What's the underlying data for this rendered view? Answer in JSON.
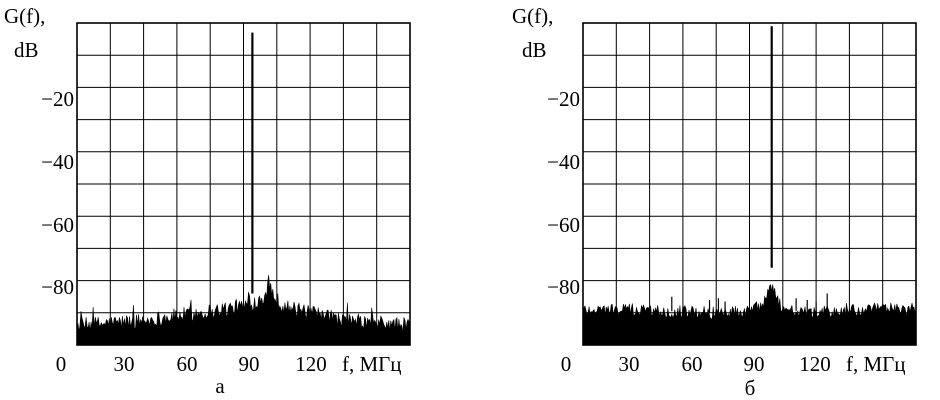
{
  "chart_data": [
    {
      "type": "line",
      "caption": "а",
      "ylabel_line1": "G(f),",
      "ylabel_line2": "dB",
      "xlabel": "f, МГц",
      "x_ticks": [
        "0",
        "30",
        "60",
        "90",
        "120"
      ],
      "y_ticks": [
        "−20",
        "−40",
        "−60",
        "−80"
      ],
      "xlim": [
        0,
        150
      ],
      "ylim": [
        -100,
        0
      ],
      "grid": true,
      "carrier": {
        "x": 79,
        "top": -3,
        "bottom": -84
      },
      "noise_profile": [
        [
          0,
          -94
        ],
        [
          10,
          -93.5
        ],
        [
          20,
          -93
        ],
        [
          30,
          -92.5
        ],
        [
          40,
          -91.5
        ],
        [
          50,
          -90.5
        ],
        [
          60,
          -89.5
        ],
        [
          70,
          -88.5
        ],
        [
          78,
          -87.5
        ],
        [
          82,
          -86
        ],
        [
          85,
          -84
        ],
        [
          87,
          -82
        ],
        [
          89,
          -85
        ],
        [
          92,
          -87.5
        ],
        [
          100,
          -89.5
        ],
        [
          110,
          -91
        ],
        [
          120,
          -92.5
        ],
        [
          130,
          -93
        ],
        [
          140,
          -93.5
        ],
        [
          150,
          -94
        ]
      ],
      "noise_jitter": 2.5
    },
    {
      "type": "line",
      "caption": "б",
      "ylabel_line1": "G(f),",
      "ylabel_line2": "dB",
      "xlabel": "f, МГц",
      "x_ticks": [
        "0",
        "30",
        "60",
        "90",
        "120"
      ],
      "y_ticks": [
        "−20",
        "−40",
        "−60",
        "−80"
      ],
      "xlim": [
        0,
        150
      ],
      "ylim": [
        -100,
        0
      ],
      "grid": true,
      "carrier": {
        "x": 85,
        "top": -1,
        "bottom": -76
      },
      "noise_profile": [
        [
          0,
          -89
        ],
        [
          20,
          -89
        ],
        [
          40,
          -89.5
        ],
        [
          60,
          -90
        ],
        [
          75,
          -89.5
        ],
        [
          80,
          -88
        ],
        [
          83,
          -85
        ],
        [
          85,
          -82
        ],
        [
          87,
          -85
        ],
        [
          90,
          -88.5
        ],
        [
          100,
          -90
        ],
        [
          120,
          -89.5
        ],
        [
          140,
          -88.5
        ],
        [
          150,
          -89
        ]
      ],
      "noise_jitter": 2,
      "spurs": [
        {
          "x": 40,
          "top": -85
        },
        {
          "x": 57,
          "top": -86
        },
        {
          "x": 61,
          "top": -85.5
        },
        {
          "x": 64,
          "top": -86.5
        },
        {
          "x": 96,
          "top": -85.5
        },
        {
          "x": 101,
          "top": -86
        },
        {
          "x": 105,
          "top": -86.5
        },
        {
          "x": 110,
          "top": -84
        }
      ]
    }
  ]
}
